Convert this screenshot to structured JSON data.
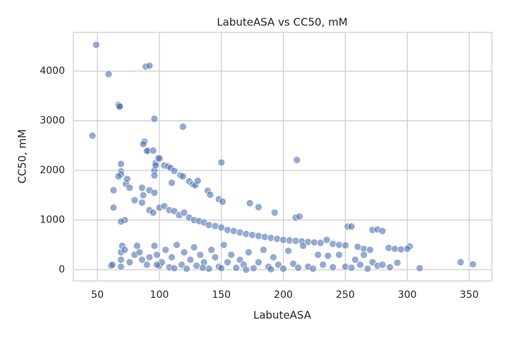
{
  "chart_data": {
    "type": "scatter",
    "title": "LabuteASA vs CC50, mM",
    "x_label": "LabuteASA",
    "y_label": "CC50, mM",
    "color": "#4c72b0",
    "grid": true,
    "xlim": [
      30.6,
      368.2
    ],
    "ylim": [
      -227,
      4780
    ],
    "xticks": [
      50,
      100,
      150,
      200,
      250,
      300,
      350
    ],
    "yticks": [
      0,
      1000,
      2000,
      3000,
      4000
    ],
    "x": [
      49,
      59,
      46,
      67,
      68,
      68,
      89,
      92,
      96,
      119,
      88,
      87,
      91,
      95,
      90,
      69,
      69,
      69,
      73,
      76,
      74,
      67,
      63,
      63,
      72,
      69,
      80,
      86,
      87,
      86,
      92,
      96,
      96,
      97,
      97,
      99,
      100,
      96,
      104,
      107,
      109,
      112,
      110,
      117,
      119,
      124,
      127,
      129,
      131,
      139,
      141,
      148,
      150,
      151,
      173,
      180,
      193,
      211,
      210,
      213,
      92,
      95,
      100,
      104,
      108,
      112,
      116,
      120,
      124,
      128,
      132,
      136,
      140,
      145,
      150,
      155,
      160,
      165,
      170,
      175,
      180,
      185,
      190,
      195,
      200,
      205,
      210,
      215,
      220,
      225,
      230,
      235,
      240,
      245,
      250,
      252,
      255,
      260,
      265,
      270,
      272,
      276,
      280,
      285,
      290,
      295,
      302,
      300,
      61,
      62,
      69,
      69,
      69,
      70,
      72,
      76,
      80,
      82,
      84,
      86,
      90,
      92,
      96,
      98,
      100,
      102,
      105,
      108,
      110,
      114,
      118,
      120,
      122,
      125,
      128,
      130,
      133,
      136,
      140,
      142,
      145,
      148,
      152,
      155,
      158,
      162,
      165,
      168,
      172,
      176,
      180,
      184,
      188,
      192,
      196,
      200,
      204,
      208,
      212,
      216,
      220,
      224,
      228,
      232,
      236,
      240,
      245,
      250,
      255,
      258,
      262,
      265,
      268,
      272,
      276,
      280,
      286,
      292,
      310,
      343,
      353,
      98,
      112,
      135,
      150,
      170,
      190
    ],
    "values": [
      4530,
      3940,
      2700,
      3320,
      3280,
      3290,
      4090,
      4110,
      3040,
      2880,
      2580,
      2530,
      2400,
      2400,
      2390,
      2130,
      1980,
      1920,
      1730,
      1650,
      1830,
      1880,
      1600,
      1250,
      1000,
      970,
      1400,
      1350,
      1500,
      1650,
      1600,
      1550,
      2000,
      2150,
      2100,
      2250,
      2240,
      1900,
      2100,
      2080,
      2050,
      1990,
      1750,
      1900,
      1880,
      1780,
      1720,
      1700,
      1790,
      1590,
      1510,
      1420,
      2160,
      1370,
      1340,
      1260,
      1150,
      2210,
      1050,
      1070,
      1200,
      1150,
      1250,
      1280,
      1200,
      1180,
      1100,
      1150,
      1050,
      1000,
      980,
      950,
      900,
      880,
      850,
      800,
      780,
      750,
      720,
      700,
      680,
      660,
      640,
      620,
      600,
      590,
      580,
      570,
      560,
      550,
      540,
      600,
      520,
      500,
      490,
      870,
      870,
      460,
      420,
      400,
      800,
      810,
      780,
      440,
      420,
      410,
      470,
      420,
      80,
      100,
      60,
      200,
      350,
      480,
      400,
      150,
      300,
      480,
      350,
      200,
      100,
      250,
      480,
      300,
      80,
      150,
      400,
      50,
      250,
      500,
      100,
      350,
      20,
      200,
      450,
      80,
      300,
      150,
      20,
      400,
      250,
      60,
      500,
      150,
      300,
      40,
      200,
      100,
      350,
      30,
      150,
      400,
      60,
      250,
      100,
      20,
      380,
      120,
      40,
      480,
      60,
      20,
      300,
      100,
      280,
      50,
      300,
      60,
      40,
      200,
      100,
      300,
      20,
      150,
      80,
      100,
      50,
      140,
      30,
      150,
      110,
      100,
      30,
      40,
      30,
      0,
      10
    ]
  }
}
